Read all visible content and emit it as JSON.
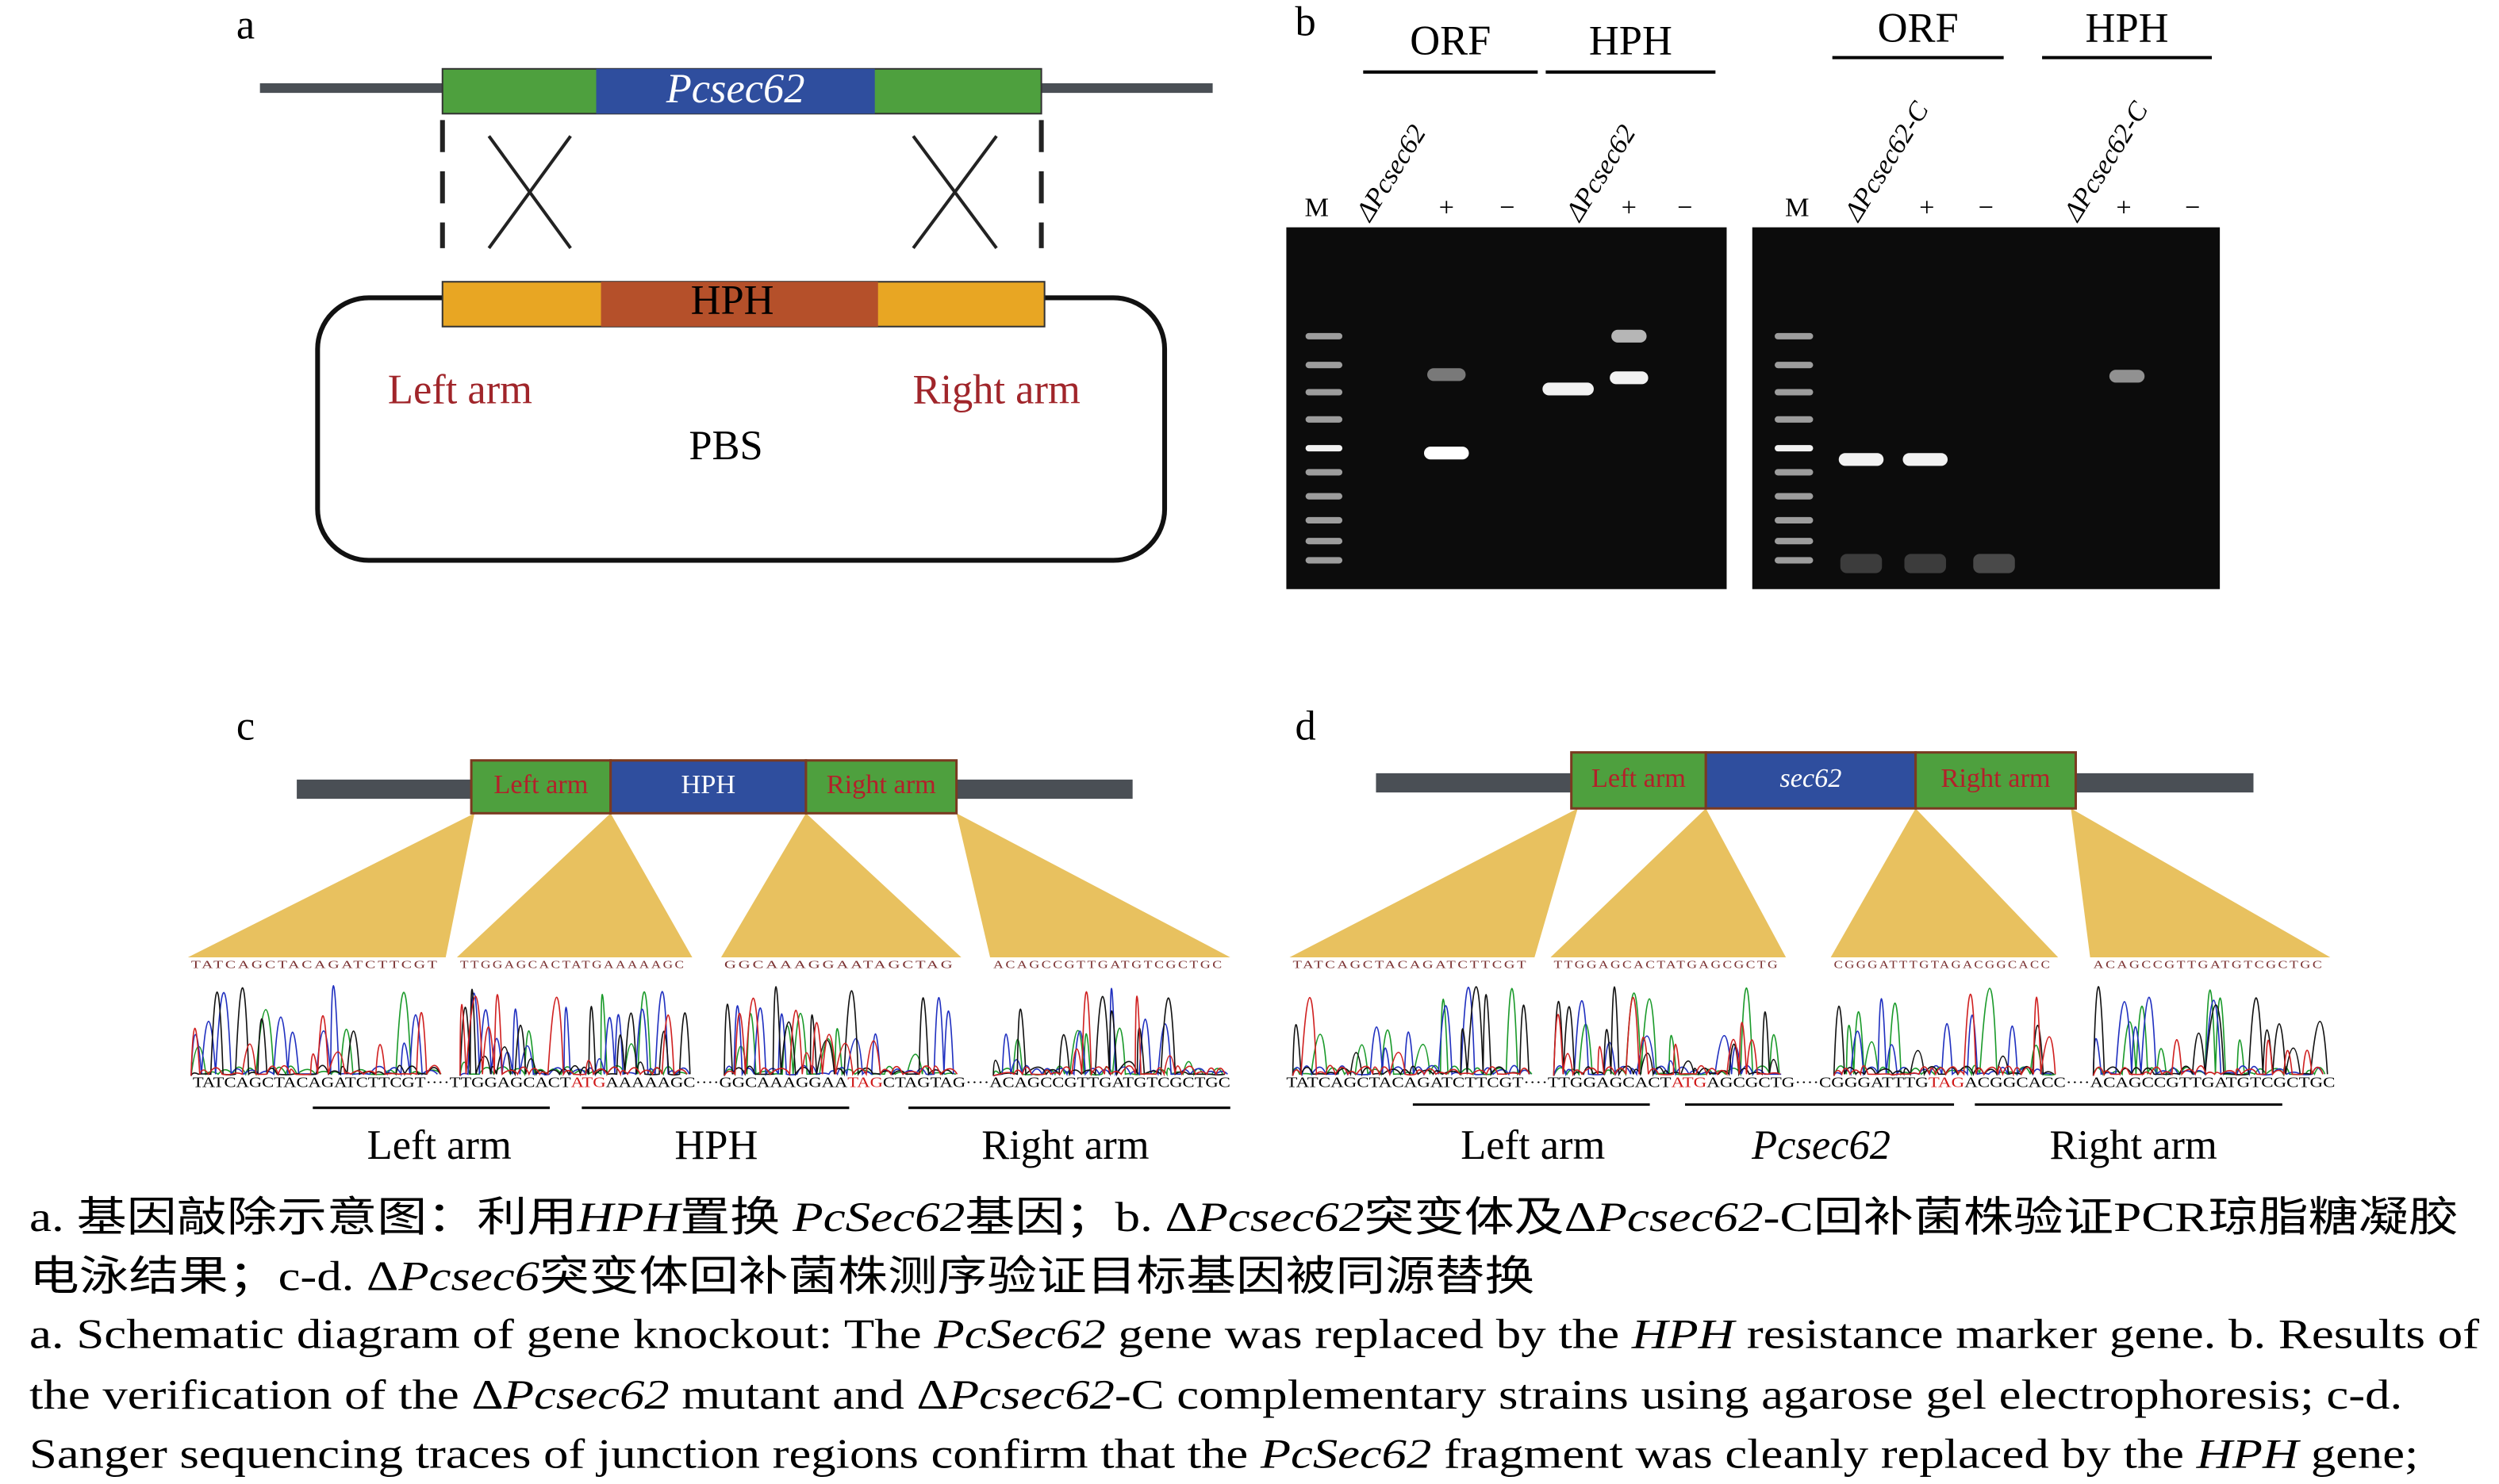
{
  "panel_a": {
    "label": "a",
    "gene": "Pcsec62",
    "marker": "HPH",
    "left_arm": "Left arm",
    "right_arm": "Right arm",
    "plasmid": "PBS"
  },
  "panel_b": {
    "label": "b",
    "gels": [
      {
        "groups": [
          "ORF",
          "HPH"
        ],
        "lanes": [
          "M",
          "ΔPcsec62",
          "+",
          "−",
          "ΔPcsec62",
          "+",
          "−"
        ]
      },
      {
        "groups": [
          "ORF",
          "HPH"
        ],
        "lanes": [
          "M",
          "ΔPcsec62-C",
          "+",
          "−",
          "ΔPcsec62-C",
          "+",
          "−"
        ]
      }
    ]
  },
  "panel_c": {
    "label": "c",
    "gene_bar": [
      "Left arm",
      "HPH",
      "Right arm"
    ],
    "reads": [
      "TATCAGCTACAGATCTTCGT",
      "TTGGAGCACTATGAAAAAGC",
      "GGCAAAGGAATAGCTAG",
      "ACAGCCGTTGATGTCGCTGC"
    ],
    "junction": [
      "TATCAGCTACAGATCTTCGT····TTGGAGCACT",
      "ATG",
      "AAAAAGC····GGCAAAGGAA",
      "TAG",
      "CTAGTAG····ACAGCCGTTGATGTCGCTGC"
    ],
    "regions": [
      "Left arm",
      "HPH",
      "Right arm"
    ]
  },
  "panel_d": {
    "label": "d",
    "gene_bar": [
      "Left arm",
      "sec62",
      "Right arm"
    ],
    "reads": [
      "TATCAGCTACAGATCTTCGT",
      "TTGGAGCACTATGAGCGCTG",
      "CGGGATTTGTAGACGGCACC",
      "ACAGCCGTTGATGTCGCTGC"
    ],
    "junction": [
      "TATCAGCTACAGATCTTCGT····TTGGAGCACT",
      "ATG",
      "AGCGCTG····CGGGATTTG",
      "TAG",
      "ACGGCACC····ACAGCCGTTGATGTCGCTGC"
    ],
    "regions": [
      "Left arm",
      "Pcsec62",
      "Right arm"
    ]
  },
  "caption": {
    "zh": [
      [
        "a. 基因敲除示意图：利用",
        "HPH",
        "置换 ",
        "PcSec62",
        "基因；b. Δ",
        "Pcsec62",
        "突变体及Δ",
        "Pcsec62",
        "-C回补菌株验证PCR琼脂糖凝胶"
      ],
      [
        "电泳结果；c-d. Δ",
        "Pcsec6",
        "突变体回补菌株测序验证目标基因被同源替换"
      ]
    ],
    "en": [
      [
        "a. Schematic diagram of gene knockout: The ",
        "PcSec62",
        " gene was replaced by the ",
        "HPH",
        " resistance marker gene. b. Results of"
      ],
      [
        "the verification of the Δ",
        "Pcsec62",
        " mutant and Δ",
        "Pcsec62",
        "-C complementary strains using agarose gel electrophoresis; c-d."
      ],
      [
        "Sanger sequencing traces of junction regions confirm that the ",
        "PcSec62",
        " fragment was cleanly replaced by the ",
        "HPH",
        " gene;"
      ]
    ]
  }
}
